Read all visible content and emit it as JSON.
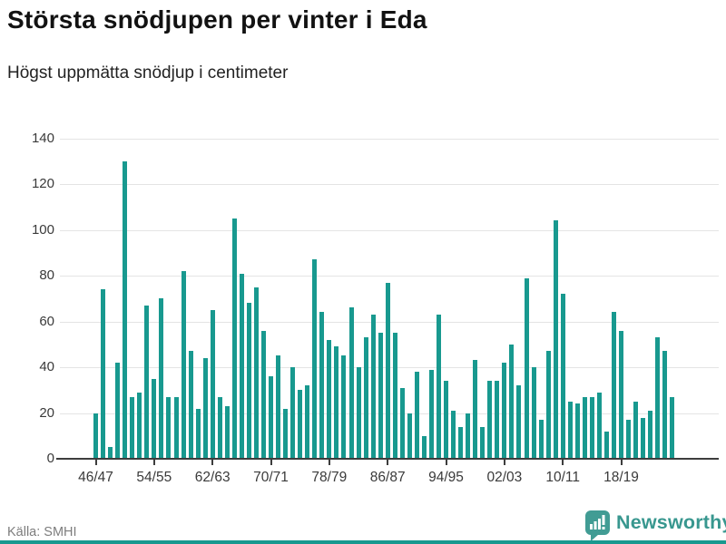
{
  "header": {
    "title": "Största snödjupen per vinter i Eda",
    "subtitle": "Högst uppmätta snödjup i centimeter"
  },
  "footer": {
    "source": "Källa: SMHI",
    "brand": "Newsworthy"
  },
  "colors": {
    "bar": "#18998f",
    "brand_teal": "#419c94",
    "grid": "#e4e4e4",
    "axis": "#3d3d3d",
    "text_gray": "#7d7d7d"
  },
  "chart_data": {
    "type": "bar",
    "title": "Största snödjupen per vinter i Eda",
    "subtitle": "Högst uppmätta snödjup i centimeter",
    "unit": "cm",
    "xlabel": "",
    "ylabel": "",
    "ylim": [
      0,
      140
    ],
    "y_ticks": [
      0,
      20,
      40,
      60,
      80,
      100,
      120,
      140
    ],
    "grid": true,
    "legend": false,
    "tick_every": 8,
    "x_tick_labels": [
      "46/47",
      "54/55",
      "62/63",
      "70/71",
      "78/79",
      "86/87",
      "94/95",
      "02/03",
      "10/11",
      "18/19"
    ],
    "categories": [
      "46/47",
      "47/48",
      "48/49",
      "49/50",
      "50/51",
      "51/52",
      "52/53",
      "53/54",
      "54/55",
      "55/56",
      "56/57",
      "57/58",
      "58/59",
      "59/60",
      "60/61",
      "61/62",
      "62/63",
      "63/64",
      "64/65",
      "65/66",
      "66/67",
      "67/68",
      "68/69",
      "69/70",
      "70/71",
      "71/72",
      "72/73",
      "73/74",
      "74/75",
      "75/76",
      "76/77",
      "77/78",
      "78/79",
      "79/80",
      "80/81",
      "81/82",
      "82/83",
      "83/84",
      "84/85",
      "85/86",
      "86/87",
      "87/88",
      "88/89",
      "89/90",
      "90/91",
      "91/92",
      "92/93",
      "93/94",
      "94/95",
      "95/96",
      "96/97",
      "97/98",
      "98/99",
      "99/00",
      "00/01",
      "01/02",
      "02/03",
      "03/04",
      "04/05",
      "05/06",
      "06/07",
      "07/08",
      "08/09",
      "09/10",
      "10/11",
      "11/12",
      "12/13",
      "13/14",
      "14/15",
      "15/16",
      "16/17",
      "17/18",
      "18/19",
      "19/20",
      "20/21",
      "21/22",
      "22/23",
      "23/24",
      "24/25",
      "25/26"
    ],
    "values": [
      20,
      74,
      5,
      42,
      130,
      27,
      29,
      67,
      35,
      70,
      27,
      27,
      82,
      47,
      22,
      44,
      65,
      27,
      23,
      105,
      81,
      68,
      75,
      56,
      36,
      45,
      22,
      40,
      30,
      32,
      87,
      64,
      52,
      49,
      45,
      66,
      40,
      53,
      63,
      55,
      77,
      55,
      31,
      20,
      38,
      10,
      39,
      63,
      34,
      21,
      14,
      20,
      43,
      14,
      34,
      34,
      42,
      50,
      32,
      79,
      40,
      17,
      47,
      104,
      72,
      25,
      24,
      27,
      27,
      29,
      12,
      64,
      56,
      17,
      25,
      18,
      21,
      53,
      47,
      27
    ]
  }
}
